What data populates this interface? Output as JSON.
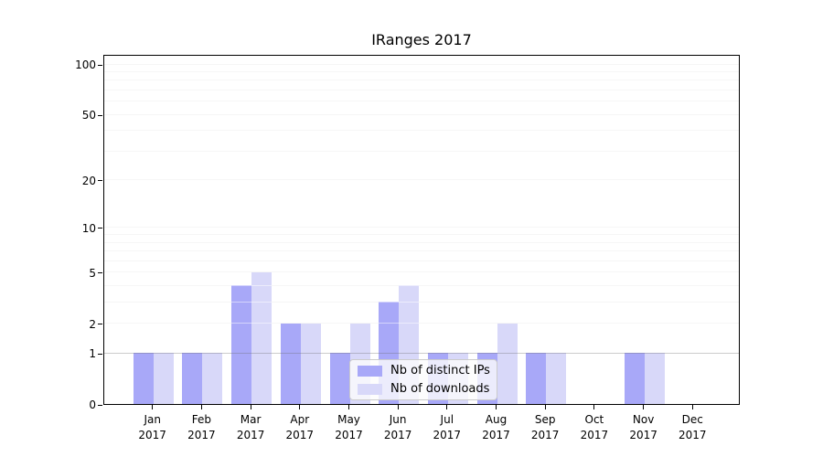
{
  "title": "IRanges 2017",
  "colors": {
    "bar_distinct_ips": "#a8a8f8",
    "bar_downloads": "#d8d8f9",
    "gridline": "#ededed",
    "gridline_y1_overlay": "rgba(110,110,110,0.35)",
    "grid_overlay": "rgba(255,255,255,0.5)",
    "axis": "#000000",
    "text": "#000000",
    "legend_bg": "rgba(252,252,252,0.8)",
    "legend_border": "#cbcbcb"
  },
  "y_axis": {
    "tick_labels": [
      0,
      1,
      2,
      5,
      10,
      20,
      50,
      100
    ],
    "minor_gridlines": [
      3,
      4,
      6,
      7,
      8,
      9,
      30,
      40,
      60,
      70,
      80,
      90
    ],
    "major_gridlines": [
      2,
      5,
      10,
      20,
      50,
      100
    ],
    "axis_max": 115,
    "scale": "log1p"
  },
  "legend": {
    "items": [
      {
        "label": "Nb of distinct IPs",
        "color": "#a8a8f8"
      },
      {
        "label": "Nb of downloads",
        "color": "#d8d8f9"
      }
    ]
  },
  "chart_data": {
    "type": "bar",
    "title": "IRanges 2017",
    "categories": [
      "Jan 2017",
      "Feb 2017",
      "Mar 2017",
      "Apr 2017",
      "May 2017",
      "Jun 2017",
      "Jul 2017",
      "Aug 2017",
      "Sep 2017",
      "Oct 2017",
      "Nov 2017",
      "Dec 2017"
    ],
    "series": [
      {
        "name": "Nb of distinct IPs",
        "values": [
          1,
          1,
          4,
          2,
          1,
          3,
          1,
          1,
          1,
          0,
          1,
          0
        ]
      },
      {
        "name": "Nb of downloads",
        "values": [
          1,
          1,
          5,
          2,
          2,
          4,
          1,
          2,
          1,
          0,
          1,
          0
        ]
      }
    ],
    "xlabel": "",
    "ylabel": "",
    "yticks": [
      0,
      1,
      2,
      5,
      10,
      20,
      50,
      100
    ],
    "ylim": [
      0,
      115
    ],
    "yscale": "log1p",
    "grid": "horizontal",
    "legend_position": "inside-bottom-center"
  }
}
